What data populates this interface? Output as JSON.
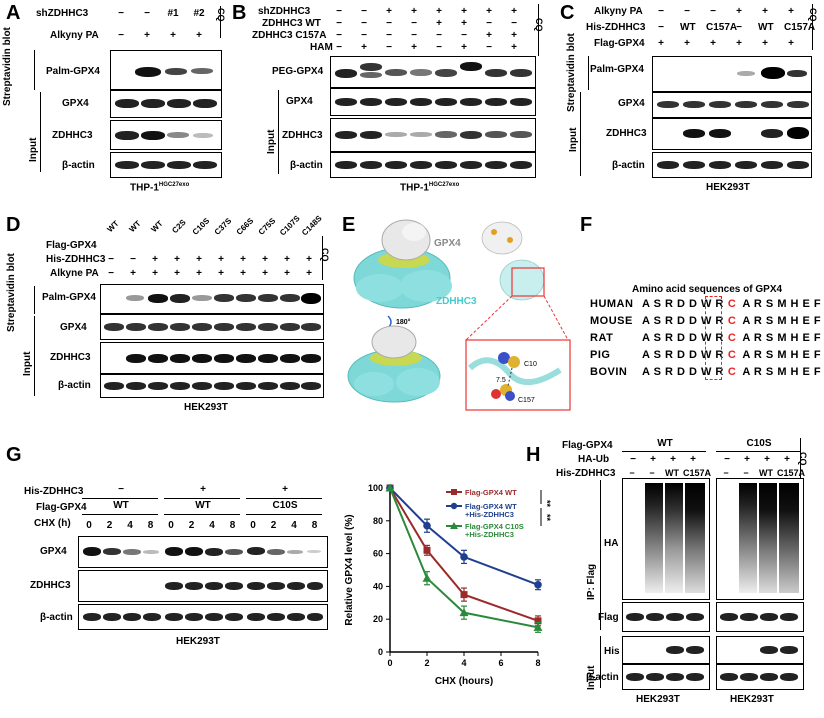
{
  "panels": {
    "A": {
      "letter": "A",
      "rows_top": [
        "shZDHHC3",
        "Alkyny PA"
      ],
      "row_shZDHHC3": [
        "−",
        "−",
        "#1",
        "#2"
      ],
      "row_alkyne": [
        "−",
        "+",
        "+",
        "+"
      ],
      "group_stv": "Streptavidin blot",
      "group_input": "Input",
      "blots": [
        "Palm-GPX4",
        "GPX4",
        "ZDHHC3",
        "β-actin"
      ],
      "cell_prefix": "THP-1",
      "cell_sup": "HGC27exo",
      "cq": "CQ"
    },
    "B": {
      "letter": "B",
      "rows_top": [
        "shZDHHC3",
        "ZDHHC3 WT",
        "ZDHHC3 C157A",
        "HAM"
      ],
      "row1": [
        "−",
        "−",
        "+",
        "+",
        "+",
        "+",
        "+",
        "+"
      ],
      "row2": [
        "−",
        "−",
        "−",
        "−",
        "+",
        "+",
        "−",
        "−"
      ],
      "row3": [
        "−",
        "−",
        "−",
        "−",
        "−",
        "−",
        "+",
        "+"
      ],
      "row4": [
        "−",
        "+",
        "−",
        "+",
        "−",
        "+",
        "−",
        "+"
      ],
      "group_input": "Input",
      "blots": [
        "PEG-GPX4",
        "GPX4",
        "ZDHHC3",
        "β-actin"
      ],
      "cell_prefix": "THP-1",
      "cell_sup": "HGC27exo",
      "cq": "CQ"
    },
    "C": {
      "letter": "C",
      "rows_top": [
        "Alkyny PA",
        "His-ZDHHC3",
        "Flag-GPX4"
      ],
      "row1": [
        "−",
        "−",
        "−",
        "+",
        "+",
        "+"
      ],
      "row2": [
        "−",
        "WT",
        "C157A",
        "−",
        "WT",
        "C157A"
      ],
      "row3": [
        "+",
        "+",
        "+",
        "+",
        "+",
        "+"
      ],
      "group_stv": "Streptavidin blot",
      "group_input": "Input",
      "blots": [
        "Palm-GPX4",
        "GPX4",
        "ZDHHC3",
        "β-actin"
      ],
      "cell": "HEK293T",
      "cq": "CQ"
    },
    "D": {
      "letter": "D",
      "rows_top": [
        "Flag-GPX4",
        "His-ZDHHC3",
        "Alkyne PA"
      ],
      "cols": [
        "WT",
        "WT",
        "WT",
        "C2S",
        "C10S",
        "C37S",
        "C66S",
        "C75S",
        "C107S",
        "C148S"
      ],
      "row2": [
        "−",
        "−",
        "+",
        "+",
        "+",
        "+",
        "+",
        "+",
        "+",
        "+"
      ],
      "row3": [
        "−",
        "+",
        "+",
        "+",
        "+",
        "+",
        "+",
        "+",
        "+",
        "+"
      ],
      "group_stv": "Streptavidin blot",
      "group_input": "Input",
      "blots": [
        "Palm-GPX4",
        "GPX4",
        "ZDHHC3",
        "β-actin"
      ],
      "cell": "HEK293T",
      "cq": "CQ"
    },
    "E": {
      "letter": "E",
      "label_gpx4": "GPX4",
      "label_zdhhc3": "ZDHHC3",
      "rotation": "180°",
      "res1": "C10",
      "res2": "C157",
      "distance": "7.5"
    },
    "F": {
      "letter": "F",
      "title": "Amino acid sequences of GPX4",
      "species": [
        "HUMAN",
        "MOUSE",
        "RAT",
        "PIG",
        "BOVIN"
      ],
      "before": "A S R D D W R",
      "highlight": "C",
      "after": "A R S M H E F"
    },
    "G": {
      "letter": "G",
      "rows_top": [
        "His-ZDHHC3",
        "Flag-GPX4",
        "CHX (h)"
      ],
      "his": [
        "−",
        "+",
        "+"
      ],
      "flag": [
        "WT",
        "WT",
        "C10S"
      ],
      "chx": [
        "0",
        "2",
        "4",
        "8",
        "0",
        "2",
        "4",
        "8",
        "0",
        "2",
        "4",
        "8"
      ],
      "blots": [
        "GPX4",
        "ZDHHC3",
        "β-actin"
      ],
      "cell": "HEK293T"
    },
    "H": {
      "letter": "H",
      "rows_top": [
        "Flag-GPX4",
        "HA-Ub",
        "His-ZDHHC3"
      ],
      "flag": [
        "WT",
        "C10S"
      ],
      "ha": [
        "−",
        "+",
        "+",
        "+"
      ],
      "his": [
        "−",
        "−",
        "WT",
        "C157A"
      ],
      "group_ip": "IP: Flag",
      "group_input": "Input",
      "blots": [
        "HA",
        "Flag",
        "His",
        "β-actin"
      ],
      "cell": "HEK293T",
      "cq": "CQ"
    }
  },
  "chart_data": {
    "type": "line",
    "title": "",
    "xlabel": "CHX (hours)",
    "ylabel": "Relative GPX4 level (%)",
    "x": [
      0,
      2,
      4,
      8
    ],
    "xticks": [
      "0",
      "2",
      "4",
      "6",
      "8"
    ],
    "yticks": [
      "0",
      "20",
      "40",
      "60",
      "80",
      "100"
    ],
    "xlim": [
      0,
      8
    ],
    "ylim": [
      0,
      100
    ],
    "legend_position": "top-right",
    "significance": [
      "**",
      "**"
    ],
    "series": [
      {
        "name": "Flag-GPX4 WT",
        "color": "#9b2b2b",
        "marker": "square",
        "values": [
          100,
          62,
          35,
          19
        ],
        "err": [
          0,
          3,
          4,
          3
        ]
      },
      {
        "name": "Flag-GPX4 WT +His-ZDHHC3",
        "color": "#1f3f8f",
        "marker": "circle",
        "values": [
          100,
          77,
          58,
          41
        ],
        "err": [
          0,
          4,
          4,
          3
        ]
      },
      {
        "name": "Flag-GPX4 C10S +His-ZDHHC3",
        "color": "#2a8a3a",
        "marker": "triangle",
        "values": [
          100,
          45,
          24,
          15
        ],
        "err": [
          0,
          4,
          4,
          3
        ]
      }
    ]
  }
}
